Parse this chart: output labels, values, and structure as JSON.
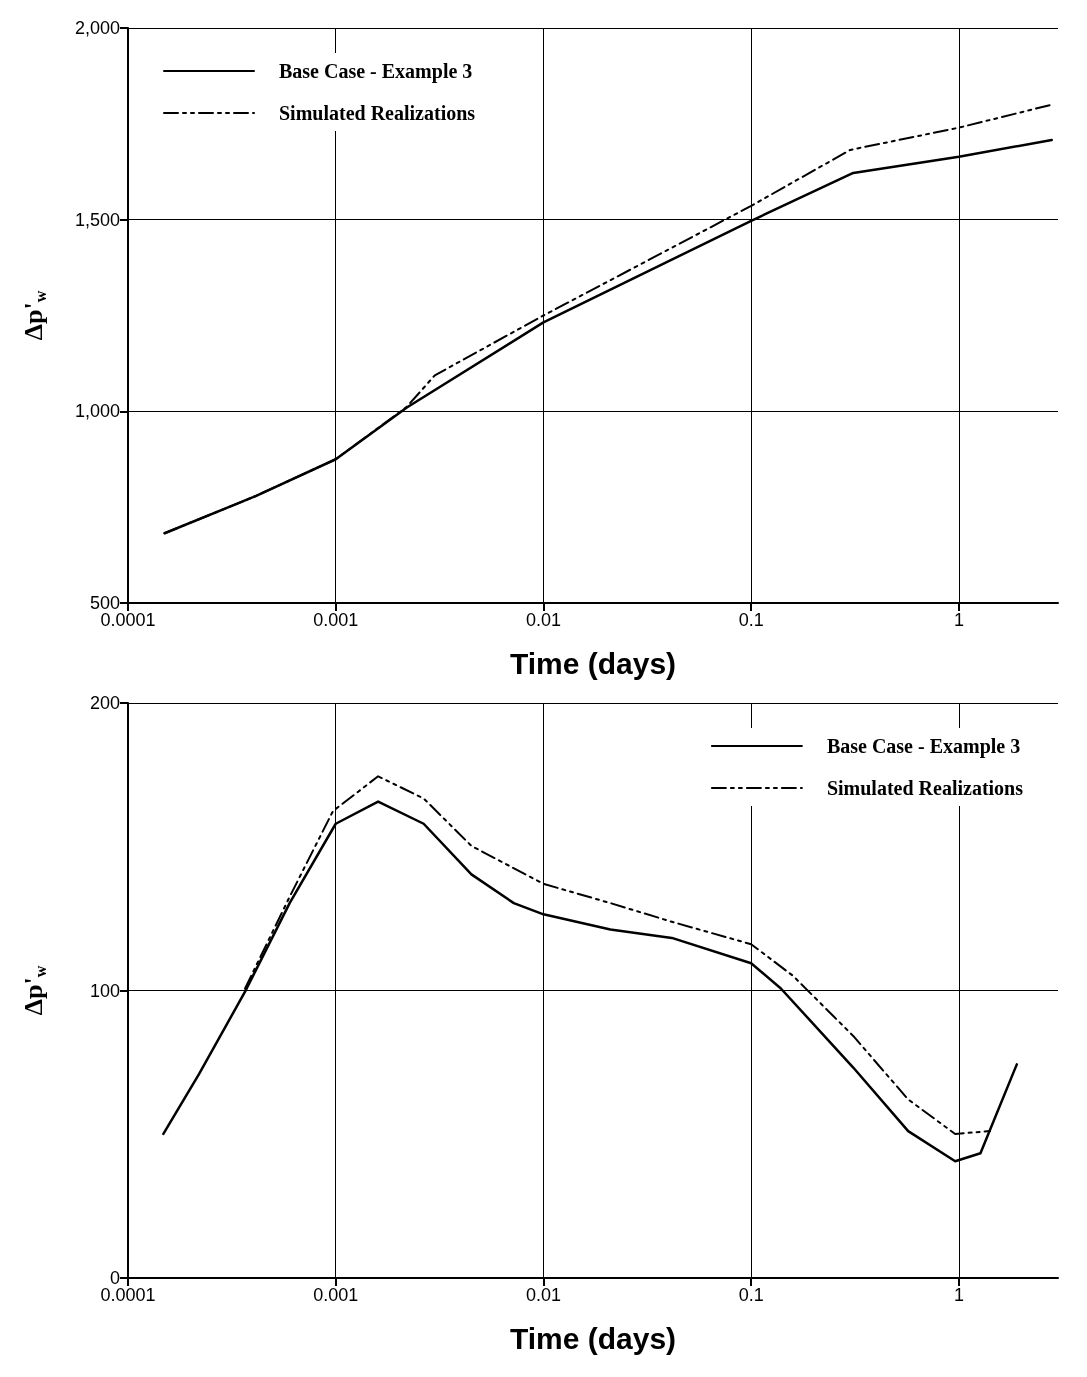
{
  "chart_data": [
    {
      "type": "line",
      "ylabel": "Δp'$_{w}$",
      "xlabel": "Time (days)",
      "log": "x",
      "xlim": [
        0.0001,
        3
      ],
      "xticks": [
        0.0001,
        0.001,
        0.01,
        0.1,
        1
      ],
      "ylim": [
        500,
        2000
      ],
      "yticks": [
        {
          "value": 500,
          "label": "500"
        },
        {
          "value": 1000,
          "label": "1,000"
        },
        {
          "value": 1500,
          "label": "1,500"
        },
        {
          "value": 2000,
          "label": "2,000"
        }
      ],
      "grid": true,
      "legend": "top left",
      "marker": "none",
      "series": [
        {
          "name": "Base Case - Example 3",
          "color": "#000000",
          "line_style": "solid",
          "x": [
            0.00015,
            0.0004,
            0.001,
            0.0022,
            0.01,
            0.1,
            0.31,
            1,
            2.8
          ],
          "values": [
            682,
            776,
            875,
            1010,
            1232,
            1497,
            1622,
            1664,
            1708
          ]
        },
        {
          "name": "Simulated Realizations",
          "color": "#000000",
          "line_style": "dashed",
          "x": [
            0.00015,
            0.0004,
            0.001,
            0.0022,
            0.003,
            0.01,
            0.1,
            0.3,
            1,
            2.8
          ],
          "values": [
            682,
            776,
            875,
            1012,
            1094,
            1250,
            1536,
            1682,
            1740,
            1800
          ]
        }
      ]
    },
    {
      "type": "line",
      "ylabel": "Δp'$_{w}$",
      "xlabel": "Time (days)",
      "log": "x",
      "xlim": [
        0.0001,
        3
      ],
      "xticks": [
        0.0001,
        0.001,
        0.01,
        0.1,
        1
      ],
      "ylim": [
        0,
        200
      ],
      "yticks": [
        0,
        100,
        200
      ],
      "grid": true,
      "legend": "top right",
      "marker": "none",
      "series": [
        {
          "name": "Base Case - Example 3",
          "color": "#000000",
          "line_style": "solid",
          "x": [
            0.000148,
            0.00022,
            0.000366,
            0.0006,
            0.001,
            0.0016,
            0.00265,
            0.0045,
            0.0072,
            0.01,
            0.021,
            0.0415,
            0.1,
            0.139,
            0.31,
            0.57,
            0.96,
            1.27,
            1.9
          ],
          "values": [
            50.1,
            71.0,
            99.6,
            130.4,
            158.0,
            165.7,
            158.0,
            140.4,
            130.4,
            126.5,
            121.2,
            118.3,
            109.5,
            100.7,
            73.2,
            51.1,
            40.6,
            43.4,
            74.3
          ]
        },
        {
          "name": "Simulated Realizations",
          "color": "#000000",
          "line_style": "dashed",
          "x": [
            0.000366,
            0.0006,
            0.00097,
            0.0016,
            0.00265,
            0.0045,
            0.01,
            0.021,
            0.0415,
            0.1,
            0.159,
            0.31,
            0.57,
            0.96,
            1.41
          ],
          "values": [
            100.7,
            132.6,
            162.4,
            174.5,
            166.8,
            150.3,
            137.1,
            130.4,
            123.9,
            116.1,
            105.1,
            84.2,
            62.1,
            50.1,
            51.1
          ]
        }
      ]
    }
  ]
}
